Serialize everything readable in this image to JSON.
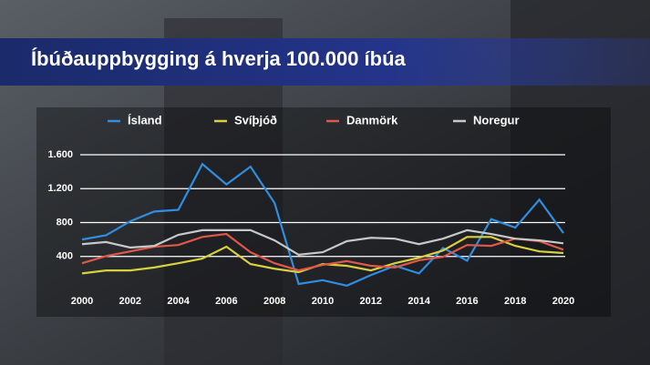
{
  "chart_data": {
    "type": "line",
    "title": "Íbúðauppbygging á hverja 100.000 íbúa",
    "x": [
      2000,
      2001,
      2002,
      2003,
      2004,
      2005,
      2006,
      2007,
      2008,
      2009,
      2010,
      2011,
      2012,
      2013,
      2014,
      2015,
      2016,
      2017,
      2018,
      2019,
      2020
    ],
    "xlim": [
      2000,
      2020
    ],
    "xticks": [
      2000,
      2002,
      2004,
      2006,
      2008,
      2010,
      2012,
      2014,
      2016,
      2018,
      2020
    ],
    "ylim": [
      0,
      1600
    ],
    "yticks": [
      400,
      800,
      {
        "value": 1200,
        "label": "1.200"
      },
      {
        "value": 1600,
        "label": "1.600"
      }
    ],
    "grid": true,
    "series": [
      {
        "name": "Ísland",
        "color": "#2f8ee0",
        "values": [
          600,
          650,
          815,
          930,
          950,
          1490,
          1250,
          1460,
          1030,
          75,
          120,
          55,
          180,
          290,
          200,
          500,
          350,
          840,
          740,
          1070,
          675
        ]
      },
      {
        "name": "Svíþjóð",
        "color": "#d8d040",
        "values": [
          200,
          235,
          235,
          270,
          320,
          375,
          515,
          310,
          255,
          215,
          310,
          290,
          235,
          320,
          385,
          470,
          630,
          630,
          525,
          460,
          440
        ]
      },
      {
        "name": "Danmörk",
        "color": "#e0584a",
        "values": [
          320,
          405,
          460,
          515,
          535,
          630,
          665,
          450,
          320,
          235,
          300,
          345,
          290,
          270,
          355,
          395,
          535,
          525,
          610,
          580,
          480
        ]
      },
      {
        "name": "Noregur",
        "color": "#c8c8c8",
        "values": [
          545,
          570,
          505,
          525,
          655,
          710,
          710,
          710,
          590,
          420,
          450,
          580,
          620,
          610,
          545,
          610,
          710,
          665,
          610,
          590,
          555
        ]
      }
    ]
  }
}
